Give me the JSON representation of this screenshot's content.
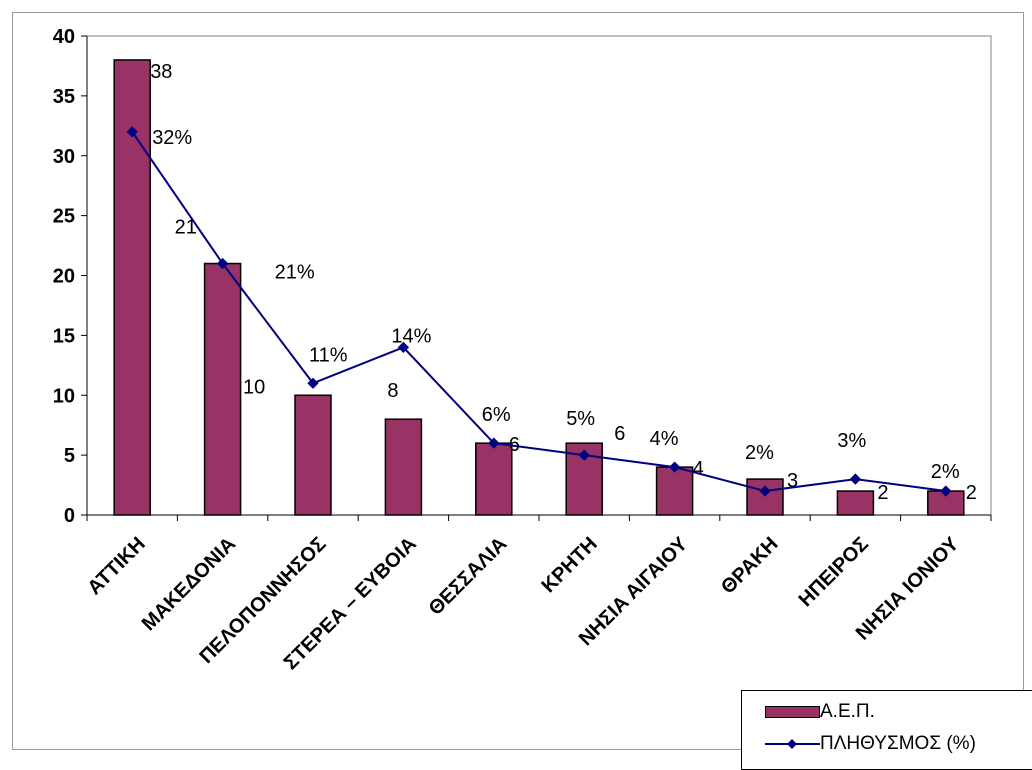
{
  "chart_data": {
    "type": "bar",
    "categories": [
      "ΑΤΤΙΚΗ",
      "ΜΑΚΕΔΟΝΙΑ",
      "ΠΕΛΟΠΟΝΝΗΣΟΣ",
      "ΣΤΕΡΕΑ – ΕΥΒΟΙΑ",
      "ΘΕΣΣΑΛΙΑ",
      "ΚΡΗΤΗ",
      "ΝΗΣΙΑ ΑΙΓΑΙΟΥ",
      "ΘΡΑΚΗ",
      "ΗΠΕΙΡΟΣ",
      "ΝΗΣΙΑ ΙΟΝΙΟΥ"
    ],
    "series": [
      {
        "name": "Α.Ε.Π.",
        "type": "bar",
        "color": "#993366",
        "values": [
          38,
          21,
          10,
          8,
          6,
          6,
          4,
          3,
          2,
          2
        ],
        "labels": [
          "38",
          "21",
          "10",
          "8",
          "6",
          "6",
          "4",
          "3",
          "2",
          "2"
        ]
      },
      {
        "name": "ΠΛΗΘΥΣΜΟΣ (%)",
        "type": "line",
        "color": "#000080",
        "values": [
          32,
          21,
          11,
          14,
          6,
          5,
          4,
          2,
          3,
          2
        ],
        "labels": [
          "32%",
          "21%",
          "11%",
          "14%",
          "6%",
          "5%",
          "4%",
          "2%",
          "3%",
          "2%"
        ]
      }
    ],
    "y_ticks": [
      "0",
      "5",
      "10",
      "15",
      "20",
      "25",
      "30",
      "35",
      "40"
    ],
    "ylim": [
      0,
      40
    ],
    "grid": false,
    "legend_position": "bottom-right",
    "background": "#ffffff"
  }
}
